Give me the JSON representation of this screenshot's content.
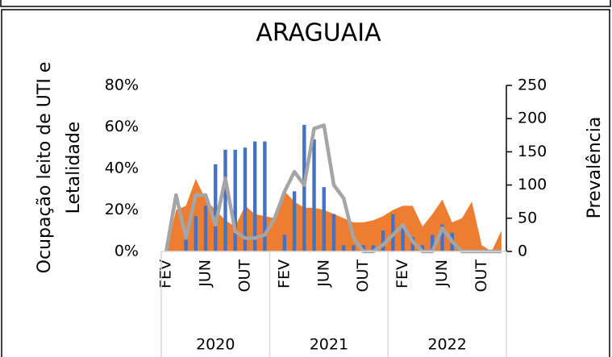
{
  "chart_data": {
    "type": "combo",
    "title": "ARAGUAIA",
    "y_label": [
      "Ocupação leito de UTI e",
      "Letalidade"
    ],
    "y2_label": "Prevalência",
    "categories": [
      "FEV",
      null,
      null,
      null,
      "JUN",
      null,
      null,
      null,
      "OUT",
      null,
      null,
      null,
      "FEV",
      null,
      null,
      null,
      "JUN",
      null,
      null,
      null,
      "OUT",
      null,
      null,
      null,
      "FEV",
      null,
      null,
      null,
      "JUN",
      null,
      null,
      null,
      "OUT",
      null,
      null
    ],
    "x_groups": [
      "2020",
      "2021",
      "2022"
    ],
    "series": [
      {
        "type": "area",
        "color": "#ed7d31",
        "values": [
          0,
          20,
          22,
          35,
          25,
          20,
          15,
          12,
          22,
          18,
          17,
          16,
          29,
          24,
          21,
          21,
          20,
          18,
          16,
          14,
          14,
          15,
          17,
          20,
          22,
          22,
          12,
          18,
          25,
          14,
          16,
          24,
          3,
          0,
          10
        ]
      },
      {
        "type": "bar",
        "color": "#4472c4",
        "values": [
          0,
          0,
          7,
          17,
          22,
          42,
          49,
          49,
          50,
          53,
          53,
          0,
          8,
          29,
          61,
          54,
          31,
          18,
          3,
          3,
          3,
          3,
          10,
          18,
          13,
          7,
          3,
          8,
          13,
          9,
          0,
          0,
          0,
          0,
          0
        ]
      },
      {
        "type": "line",
        "axis": "y2",
        "color": "#a5a5a5",
        "values": [
          0,
          85,
          20,
          85,
          85,
          40,
          110,
          30,
          20,
          20,
          25,
          50,
          90,
          120,
          100,
          185,
          190,
          100,
          80,
          20,
          0,
          0,
          10,
          25,
          40,
          15,
          0,
          0,
          35,
          15,
          0,
          0,
          0,
          0,
          0
        ]
      }
    ],
    "ylim": [
      0,
      80
    ],
    "yticks": [
      {
        "value": 0,
        "label": "0%"
      },
      {
        "value": 20,
        "label": "20%"
      },
      {
        "value": 40,
        "label": "40%"
      },
      {
        "value": 60,
        "label": "60%"
      },
      {
        "value": 80,
        "label": "80%"
      }
    ],
    "y2lim": [
      0,
      250
    ],
    "y2ticks": [
      0,
      50,
      100,
      150,
      200,
      250
    ]
  }
}
